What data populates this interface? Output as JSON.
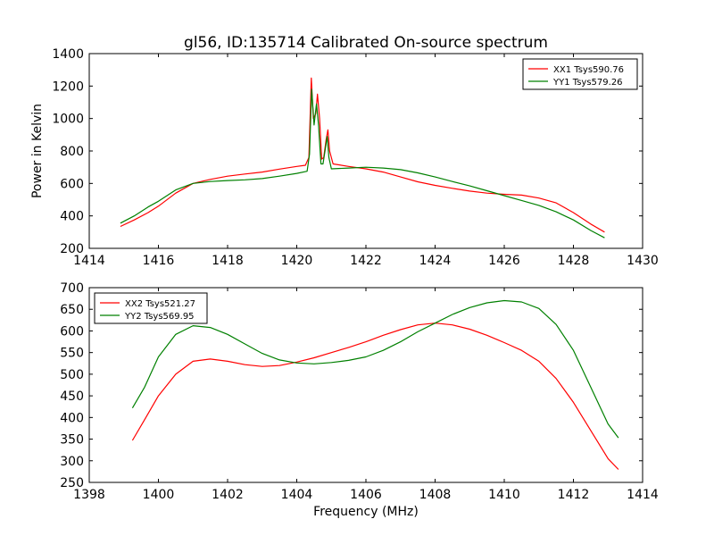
{
  "figure": {
    "title": "gl56, ID:135714 Calibrated On-source spectrum",
    "xlabel": "Frequency (MHz)"
  },
  "chart_data": [
    {
      "type": "line",
      "ylabel": "Power in Kelvin",
      "xlim": [
        1414,
        1430
      ],
      "ylim": [
        200,
        1400
      ],
      "xticks": [
        1414,
        1416,
        1418,
        1420,
        1422,
        1424,
        1426,
        1428,
        1430
      ],
      "yticks": [
        200,
        400,
        600,
        800,
        1000,
        1200,
        1400
      ],
      "legend": "top-right",
      "series": [
        {
          "name": "XX1 Tsys590.76",
          "color": "#ff0000",
          "points": [
            [
              1414.9,
              335
            ],
            [
              1415.3,
              375
            ],
            [
              1415.7,
              420
            ],
            [
              1416.0,
              460
            ],
            [
              1416.5,
              540
            ],
            [
              1417.0,
              600
            ],
            [
              1417.5,
              625
            ],
            [
              1418.0,
              645
            ],
            [
              1418.5,
              658
            ],
            [
              1419.0,
              670
            ],
            [
              1419.5,
              688
            ],
            [
              1420.0,
              705
            ],
            [
              1420.25,
              712
            ],
            [
              1420.35,
              760
            ],
            [
              1420.42,
              1250
            ],
            [
              1420.48,
              1000
            ],
            [
              1420.55,
              1030
            ],
            [
              1420.6,
              1150
            ],
            [
              1420.66,
              1000
            ],
            [
              1420.72,
              750
            ],
            [
              1420.78,
              760
            ],
            [
              1420.85,
              870
            ],
            [
              1420.9,
              930
            ],
            [
              1420.95,
              800
            ],
            [
              1421.05,
              720
            ],
            [
              1421.5,
              705
            ],
            [
              1422.0,
              690
            ],
            [
              1422.5,
              670
            ],
            [
              1423.0,
              640
            ],
            [
              1423.5,
              610
            ],
            [
              1424.0,
              588
            ],
            [
              1424.5,
              570
            ],
            [
              1425.0,
              553
            ],
            [
              1425.5,
              540
            ],
            [
              1426.0,
              533
            ],
            [
              1426.5,
              528
            ],
            [
              1427.0,
              510
            ],
            [
              1427.5,
              480
            ],
            [
              1428.0,
              420
            ],
            [
              1428.5,
              350
            ],
            [
              1428.9,
              300
            ]
          ]
        },
        {
          "name": "YY1 Tsys579.26",
          "color": "#008000",
          "points": [
            [
              1414.9,
              355
            ],
            [
              1415.3,
              400
            ],
            [
              1415.7,
              455
            ],
            [
              1416.0,
              490
            ],
            [
              1416.5,
              560
            ],
            [
              1417.0,
              600
            ],
            [
              1417.5,
              612
            ],
            [
              1418.0,
              618
            ],
            [
              1418.5,
              622
            ],
            [
              1419.0,
              630
            ],
            [
              1419.5,
              645
            ],
            [
              1420.0,
              662
            ],
            [
              1420.3,
              675
            ],
            [
              1420.37,
              780
            ],
            [
              1420.43,
              1180
            ],
            [
              1420.5,
              960
            ],
            [
              1420.57,
              1090
            ],
            [
              1420.63,
              960
            ],
            [
              1420.7,
              720
            ],
            [
              1420.76,
              720
            ],
            [
              1420.83,
              820
            ],
            [
              1420.88,
              890
            ],
            [
              1420.93,
              760
            ],
            [
              1421.0,
              690
            ],
            [
              1421.5,
              695
            ],
            [
              1422.0,
              700
            ],
            [
              1422.5,
              695
            ],
            [
              1423.0,
              685
            ],
            [
              1423.5,
              665
            ],
            [
              1424.0,
              640
            ],
            [
              1424.5,
              612
            ],
            [
              1425.0,
              585
            ],
            [
              1425.5,
              555
            ],
            [
              1426.0,
              525
            ],
            [
              1426.5,
              495
            ],
            [
              1427.0,
              465
            ],
            [
              1427.5,
              425
            ],
            [
              1428.0,
              375
            ],
            [
              1428.5,
              310
            ],
            [
              1428.9,
              265
            ]
          ]
        }
      ]
    },
    {
      "type": "line",
      "ylabel": "",
      "xlim": [
        1398,
        1414
      ],
      "ylim": [
        250,
        700
      ],
      "xticks": [
        1398,
        1400,
        1402,
        1404,
        1406,
        1408,
        1410,
        1412,
        1414
      ],
      "yticks": [
        250,
        300,
        350,
        400,
        450,
        500,
        550,
        600,
        650,
        700
      ],
      "legend": "top-left",
      "series": [
        {
          "name": "XX2 Tsys521.27",
          "color": "#ff0000",
          "points": [
            [
              1399.25,
              347
            ],
            [
              1399.6,
              395
            ],
            [
              1400.0,
              450
            ],
            [
              1400.5,
              500
            ],
            [
              1401.0,
              530
            ],
            [
              1401.5,
              535
            ],
            [
              1402.0,
              530
            ],
            [
              1402.5,
              522
            ],
            [
              1403.0,
              518
            ],
            [
              1403.5,
              520
            ],
            [
              1404.0,
              528
            ],
            [
              1404.5,
              538
            ],
            [
              1405.0,
              550
            ],
            [
              1405.5,
              562
            ],
            [
              1406.0,
              575
            ],
            [
              1406.5,
              590
            ],
            [
              1407.0,
              603
            ],
            [
              1407.5,
              614
            ],
            [
              1408.0,
              618
            ],
            [
              1408.5,
              614
            ],
            [
              1409.0,
              604
            ],
            [
              1409.5,
              590
            ],
            [
              1410.0,
              573
            ],
            [
              1410.5,
              555
            ],
            [
              1411.0,
              530
            ],
            [
              1411.5,
              490
            ],
            [
              1412.0,
              435
            ],
            [
              1412.5,
              370
            ],
            [
              1413.0,
              305
            ],
            [
              1413.3,
              280
            ]
          ]
        },
        {
          "name": "YY2 Tsys569.95",
          "color": "#008000",
          "points": [
            [
              1399.25,
              422
            ],
            [
              1399.6,
              470
            ],
            [
              1400.0,
              540
            ],
            [
              1400.5,
              592
            ],
            [
              1401.0,
              612
            ],
            [
              1401.5,
              608
            ],
            [
              1402.0,
              592
            ],
            [
              1402.5,
              570
            ],
            [
              1403.0,
              548
            ],
            [
              1403.5,
              533
            ],
            [
              1404.0,
              526
            ],
            [
              1404.5,
              524
            ],
            [
              1405.0,
              527
            ],
            [
              1405.5,
              532
            ],
            [
              1406.0,
              540
            ],
            [
              1406.5,
              555
            ],
            [
              1407.0,
              575
            ],
            [
              1407.5,
              598
            ],
            [
              1408.0,
              618
            ],
            [
              1408.5,
              638
            ],
            [
              1409.0,
              654
            ],
            [
              1409.5,
              665
            ],
            [
              1410.0,
              670
            ],
            [
              1410.5,
              667
            ],
            [
              1411.0,
              652
            ],
            [
              1411.5,
              615
            ],
            [
              1412.0,
              555
            ],
            [
              1412.5,
              470
            ],
            [
              1413.0,
              385
            ],
            [
              1413.3,
              353
            ]
          ]
        }
      ]
    }
  ]
}
